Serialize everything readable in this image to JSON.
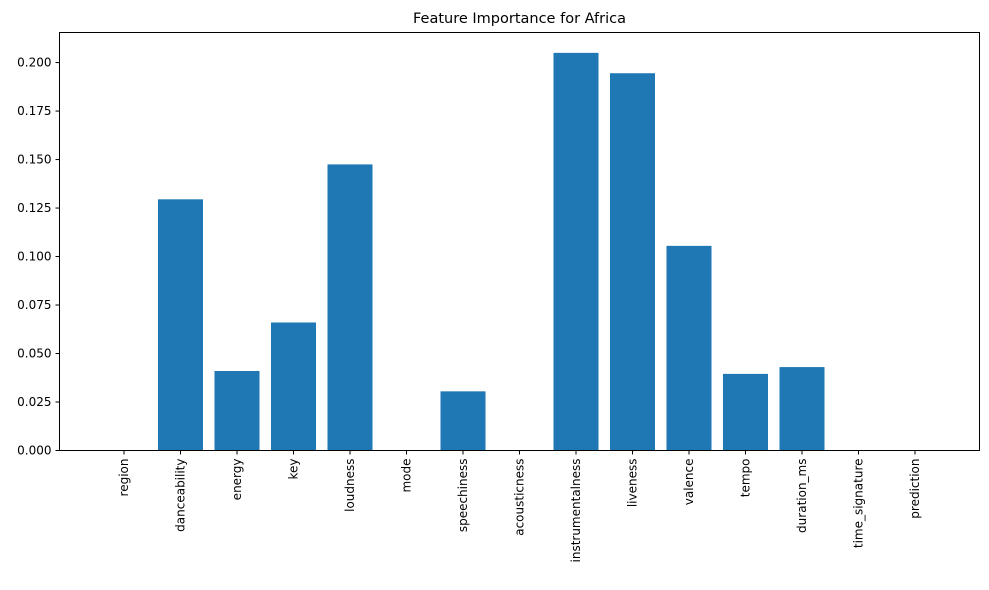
{
  "chart_data": {
    "type": "bar",
    "title": "Feature Importance for Africa",
    "xlabel": "",
    "ylabel": "",
    "categories": [
      "region",
      "danceability",
      "energy",
      "key",
      "loudness",
      "mode",
      "speechiness",
      "acousticness",
      "instrumentalness",
      "liveness",
      "valence",
      "tempo",
      "duration_ms",
      "time_signature",
      "prediction"
    ],
    "values": [
      0.0,
      0.1295,
      0.041,
      0.066,
      0.1475,
      0.0,
      0.0305,
      0.0,
      0.205,
      0.1945,
      0.1055,
      0.0395,
      0.043,
      0.0,
      0.0
    ],
    "ylim": [
      0,
      0.2155
    ],
    "yticks": [
      0.0,
      0.025,
      0.05,
      0.075,
      0.1,
      0.125,
      0.15,
      0.175,
      0.2
    ],
    "ytick_labels": [
      "0.000",
      "0.025",
      "0.050",
      "0.075",
      "0.100",
      "0.125",
      "0.150",
      "0.175",
      "0.200"
    ],
    "grid": false,
    "bar_color": "#1f77b4"
  }
}
